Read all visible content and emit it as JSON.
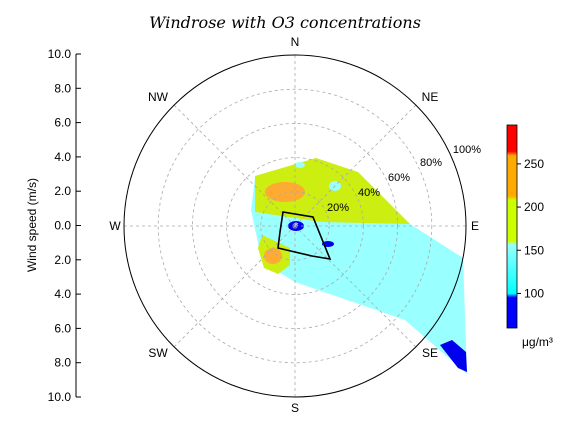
{
  "chart_data": {
    "type": "windrose",
    "title": "Windrose with O3 concentrations",
    "ylabel": "Wind speed (m/s)",
    "y_ticks": [
      "10.0",
      "8.0",
      "6.0",
      "4.0",
      "2.0",
      "0.0",
      "2.0",
      "4.0",
      "6.0",
      "8.0",
      "10.0"
    ],
    "directions": [
      "N",
      "NE",
      "E",
      "SE",
      "S",
      "SW",
      "W",
      "NW"
    ],
    "radial_labels": [
      "20%",
      "40%",
      "60%",
      "80%",
      "100%"
    ],
    "colorbar": {
      "ticks": [
        100,
        150,
        200,
        250
      ],
      "range": [
        60,
        295
      ],
      "unit": "μg/m³",
      "colors": [
        "#0000ff",
        "#00ffff",
        "#99ff99",
        "#ccff00",
        "#ffaa00",
        "#ff0000"
      ]
    },
    "concentration_regions": [
      {
        "level": "150-200",
        "color": "#ccee11"
      },
      {
        "level": "100-150",
        "color": "#99ffff"
      },
      {
        "level": "200-250",
        "color": "#ffaa33"
      },
      {
        "level": "<100",
        "color": "#0000ee"
      }
    ]
  }
}
